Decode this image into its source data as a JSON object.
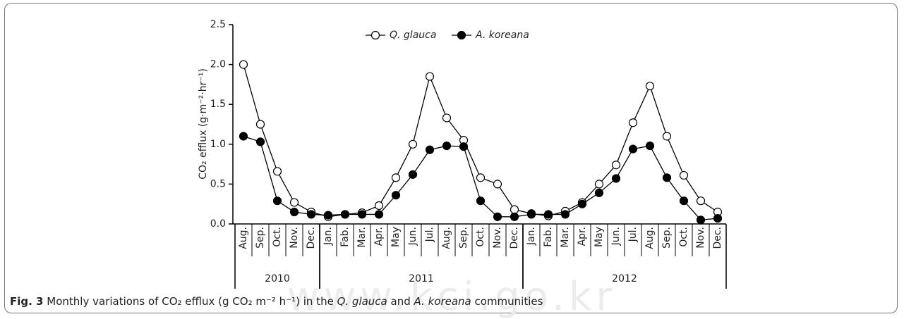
{
  "chart_data": {
    "type": "line",
    "y_label": "CO₂ efflux (g·m⁻²·hr⁻¹)",
    "categories": [
      "Aug.",
      "Sep.",
      "Oct.",
      "Nov.",
      "Dec.",
      "Jan.",
      "Fab.",
      "Mar.",
      "Apr.",
      "May",
      "Jun.",
      "Jul.",
      "Aug.",
      "Sep.",
      "Oct.",
      "Nov.",
      "Dec.",
      "Jan.",
      "Fab.",
      "Mar.",
      "Apr.",
      "May",
      "Jun.",
      "Jul.",
      "Aug.",
      "Sep.",
      "Oct.",
      "Nov.",
      "Dec."
    ],
    "year_groups": [
      {
        "label": "2010",
        "months": 5
      },
      {
        "label": "2011",
        "months": 12
      },
      {
        "label": "2012",
        "months": 12
      }
    ],
    "series": [
      {
        "name": "Q. glauca",
        "color": "#000000",
        "marker_fill": "#ffffff",
        "values": [
          2.0,
          1.25,
          0.66,
          0.27,
          0.15,
          0.09,
          0.12,
          0.14,
          0.23,
          0.58,
          1.0,
          1.85,
          1.33,
          1.05,
          0.58,
          0.5,
          0.18,
          0.13,
          0.1,
          0.16,
          0.27,
          0.5,
          0.74,
          1.27,
          1.73,
          1.1,
          0.61,
          0.29,
          0.15
        ]
      },
      {
        "name": "A. koreana",
        "color": "#000000",
        "marker_fill": "#000000",
        "values": [
          1.1,
          1.03,
          0.29,
          0.15,
          0.12,
          0.11,
          0.12,
          0.12,
          0.12,
          0.36,
          0.62,
          0.93,
          0.98,
          0.97,
          0.29,
          0.09,
          0.09,
          0.12,
          0.12,
          0.12,
          0.25,
          0.39,
          0.57,
          0.94,
          0.98,
          0.58,
          0.29,
          0.05,
          0.07
        ]
      }
    ],
    "ylim": [
      0,
      2.5
    ],
    "yticks": [
      {
        "value": 0,
        "label": "0.0"
      },
      0.5,
      {
        "value": 1,
        "label": "1.0"
      },
      1.5,
      {
        "value": 2,
        "label": "2.0"
      },
      2.5
    ],
    "legend": "top",
    "caption": {
      "label": "Fig. 3",
      "parts": [
        "Monthly variations of CO₂ efflux (g CO₂ m⁻² h⁻¹) in the ",
        "Q. glauca",
        " and ",
        "A. koreana",
        " communities"
      ]
    },
    "watermark": "www.kci.go.kr"
  }
}
